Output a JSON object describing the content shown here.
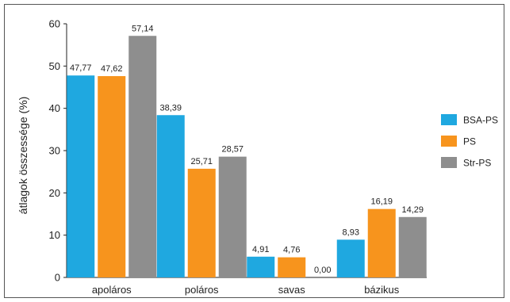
{
  "chart_data": {
    "type": "bar",
    "title": "",
    "xlabel": "",
    "ylabel": "átlagok összessége (%)",
    "ylim": [
      0,
      60
    ],
    "yticks": [
      "0",
      "10",
      "20",
      "30",
      "40",
      "50",
      "60"
    ],
    "grid": false,
    "legend_position": "right",
    "categories": [
      "apoláros",
      "poláros",
      "savas",
      "bázikus"
    ],
    "series": [
      {
        "name": "BSA-PS",
        "color": "#1fa8e0",
        "values": [
          47.77,
          38.39,
          4.91,
          8.93
        ],
        "labels": [
          "47,77",
          "38,39",
          "4,91",
          "8,93"
        ]
      },
      {
        "name": "PS",
        "color": "#f7941d",
        "values": [
          47.62,
          25.71,
          4.76,
          16.19
        ],
        "labels": [
          "47,62",
          "25,71",
          "4,76",
          "16,19"
        ]
      },
      {
        "name": "Str-PS",
        "color": "#8e8e8e",
        "values": [
          57.14,
          28.57,
          0.0,
          14.29
        ],
        "labels": [
          "57,14",
          "28,57",
          "0,00",
          "14,29"
        ]
      }
    ]
  }
}
